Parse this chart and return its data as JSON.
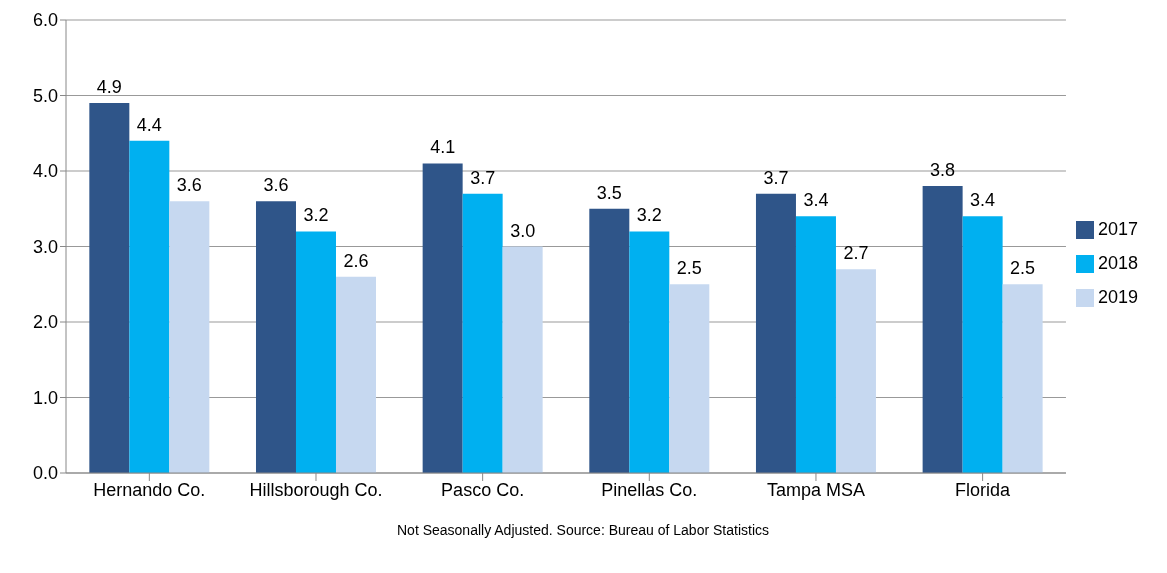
{
  "chart_data": {
    "type": "bar",
    "categories": [
      "Hernando Co.",
      "Hillsborough Co.",
      "Pasco Co.",
      "Pinellas Co.",
      "Tampa MSA",
      "Florida"
    ],
    "series": [
      {
        "name": "2017",
        "color": "#2f5589",
        "values": [
          4.9,
          3.6,
          4.1,
          3.5,
          3.7,
          3.8
        ],
        "value_labels": [
          "4.9",
          "3.6",
          "4.1",
          "3.5",
          "3.7",
          "3.8"
        ]
      },
      {
        "name": "2018",
        "color": "#00b0f0",
        "values": [
          4.4,
          3.2,
          3.7,
          3.2,
          3.4,
          3.4
        ],
        "value_labels": [
          "4.4",
          "3.2",
          "3.7",
          "3.2",
          "3.4",
          "3.4"
        ]
      },
      {
        "name": "2019",
        "color": "#c6d8f0",
        "values": [
          3.6,
          2.6,
          3.0,
          2.5,
          2.7,
          2.5
        ],
        "value_labels": [
          "3.6",
          "2.6",
          "3.0",
          "2.5",
          "2.7",
          "2.5"
        ]
      }
    ],
    "ylim": [
      0,
      6
    ],
    "yticks": [
      {
        "value": 0,
        "label": "0.0"
      },
      {
        "value": 1,
        "label": "1.0"
      },
      {
        "value": 2,
        "label": "2.0"
      },
      {
        "value": 3,
        "label": "3.0"
      },
      {
        "value": 4,
        "label": "4.0"
      },
      {
        "value": 5,
        "label": "5.0"
      },
      {
        "value": 6,
        "label": "6.0"
      }
    ],
    "grid": "y",
    "legend": "right",
    "annotations": [
      "Not Seasonally Adjusted.  Source: Bureau of Labor Statistics"
    ]
  }
}
